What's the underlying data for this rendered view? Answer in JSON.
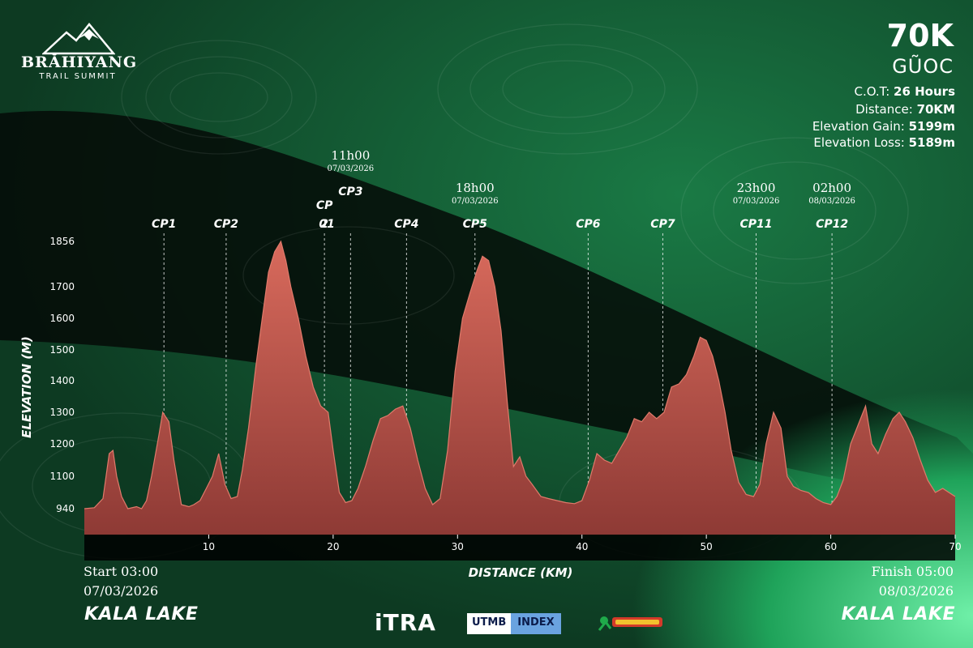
{
  "brand": {
    "logo_word": "BRĂHIYANG",
    "logo_sub": "TRAIL SUMMIT"
  },
  "race": {
    "distance_title": "70K",
    "name": "GŨOC",
    "stats": [
      {
        "label": "C.O.T:",
        "value": "26 Hours"
      },
      {
        "label": "Distance:",
        "value": "70KM"
      },
      {
        "label": "Elevation Gain:",
        "value": "5199m"
      },
      {
        "label": "Elevation Loss:",
        "value": "5189m"
      }
    ]
  },
  "footer": {
    "start_label": "Start 03:00",
    "start_date": "07/03/2026",
    "start_place": "KALA LAKE",
    "finish_label": "Finish 05:00",
    "finish_date": "08/03/2026",
    "finish_place": "KALA LAKE"
  },
  "partners": {
    "itra": "iTRA",
    "utmb_a": "UTMB",
    "utmb_b": "INDEX",
    "third_logo": "trail-master-logo"
  },
  "colors": {
    "fill": "#c25148",
    "fill_top": "#d86a5c",
    "accent": "#1f9a56"
  },
  "chart_data": {
    "type": "area",
    "xlabel": "DISTANCE (KM)",
    "ylabel": "ELEVATION (M)",
    "xlim": [
      0,
      70
    ],
    "ylim": [
      860,
      1856
    ],
    "x_ticks": [
      10,
      20,
      30,
      40,
      50,
      60,
      70
    ],
    "y_ticks": [
      940,
      1100,
      1200,
      1300,
      1400,
      1500,
      1600,
      1700,
      1856
    ],
    "series": [
      {
        "values_x": [
          0,
          0.8,
          1.5,
          2.0,
          2.3,
          2.6,
          3.0,
          3.5,
          4.2,
          4.6,
          5.0,
          5.4,
          6.0,
          6.3,
          6.8,
          7.2,
          7.8,
          8.4,
          8.8,
          9.3,
          9.8,
          10.3,
          10.8,
          11.3,
          11.8,
          12.3,
          12.7,
          13.2,
          13.8,
          14.3,
          14.8,
          15.3,
          15.8,
          16.2,
          16.6,
          17.2,
          17.8,
          18.4,
          19.0,
          19.6,
          20.0,
          20.5,
          21.0,
          21.5,
          22.0,
          22.6,
          23.2,
          23.8,
          24.4,
          25.0,
          25.6,
          26.2,
          26.8,
          27.4,
          28.0,
          28.6,
          29.2,
          29.8,
          30.4,
          31.0,
          31.6,
          32.0,
          32.5,
          33.0,
          33.5,
          34.0,
          34.5,
          35.0,
          35.5,
          36.0,
          36.7,
          37.3,
          38.0,
          38.7,
          39.4,
          40.0,
          40.6,
          41.2,
          41.8,
          42.4,
          43.0,
          43.6,
          44.2,
          44.8,
          45.4,
          46.0,
          46.6,
          47.2,
          47.8,
          48.4,
          49.0,
          49.5,
          50.0,
          50.5,
          51.0,
          51.5,
          52.0,
          52.6,
          53.2,
          53.8,
          54.3,
          54.8,
          55.4,
          56.0,
          56.5,
          57.0,
          57.6,
          58.2,
          58.8,
          59.4,
          60.0,
          60.5,
          61.0,
          61.6,
          62.2,
          62.8,
          63.3,
          63.8,
          64.4,
          65.0,
          65.5,
          66.0,
          66.6,
          67.2,
          67.8,
          68.4,
          69.0,
          69.5,
          70.0
        ],
        "values_y": [
          940,
          945,
          990,
          1170,
          1180,
          1100,
          1000,
          940,
          950,
          940,
          980,
          1100,
          1230,
          1300,
          1270,
          1150,
          960,
          950,
          960,
          980,
          1040,
          1100,
          1170,
          1060,
          990,
          1000,
          1120,
          1250,
          1450,
          1600,
          1750,
          1820,
          1856,
          1790,
          1700,
          1600,
          1480,
          1380,
          1320,
          1300,
          1180,
          1020,
          970,
          980,
          1040,
          1130,
          1210,
          1280,
          1290,
          1310,
          1320,
          1250,
          1150,
          1040,
          960,
          990,
          1180,
          1430,
          1600,
          1680,
          1760,
          1805,
          1790,
          1700,
          1560,
          1330,
          1130,
          1160,
          1100,
          1060,
          1000,
          990,
          980,
          970,
          965,
          980,
          1080,
          1170,
          1150,
          1140,
          1180,
          1220,
          1280,
          1270,
          1300,
          1280,
          1300,
          1380,
          1390,
          1420,
          1480,
          1540,
          1530,
          1480,
          1400,
          1300,
          1180,
          1070,
          1010,
          1000,
          1060,
          1200,
          1300,
          1250,
          1100,
          1050,
          1030,
          1020,
          990,
          970,
          960,
          1000,
          1080,
          1200,
          1260,
          1320,
          1200,
          1170,
          1230,
          1280,
          1300,
          1270,
          1220,
          1150,
          1080,
          1020,
          1040,
          1020,
          1000
        ]
      }
    ],
    "checkpoints": [
      {
        "label": "CP1",
        "km": 6.4
      },
      {
        "label": "CP2",
        "km": 11.4
      },
      {
        "label": "CP",
        "label2": "2",
        "overlay": "01",
        "km": 19.3
      },
      {
        "label": "CP3",
        "km": 21.4,
        "time": "11h00",
        "date": "07/03/2026"
      },
      {
        "label": "CP4",
        "km": 25.9
      },
      {
        "label": "CP5",
        "km": 31.4,
        "time": "18h00",
        "date": "07/03/2026"
      },
      {
        "label": "CP6",
        "km": 40.5
      },
      {
        "label": "CP7",
        "km": 46.5
      },
      {
        "label": "CP11",
        "km": 54.0,
        "time": "23h00",
        "date": "07/03/2026"
      },
      {
        "label": "CP12",
        "km": 60.1,
        "time": "02h00",
        "date": "08/03/2026"
      }
    ],
    "grid": false,
    "legend": "none"
  }
}
